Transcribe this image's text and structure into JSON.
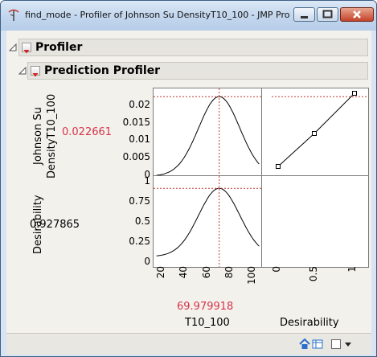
{
  "window": {
    "title": "find_mode - Profiler of Johnson Su DensityT10_100 - JMP Pro"
  },
  "outline": {
    "profiler_label": "Profiler",
    "prediction_profiler_label": "Prediction Profiler"
  },
  "profiler": {
    "response_label_line1": "Johnson Su",
    "response_label_line2": "DensityT10_100",
    "response_value": "0.022661",
    "desirability_label": "Desirability",
    "desirability_value": "0.927865",
    "factor_value": "69.979918",
    "factor_label": "T10_100",
    "desirability_axis_label": "Desirability",
    "y1_ticks": [
      "0.02",
      "0.015",
      "0.01",
      "0.005",
      "0"
    ],
    "y2_ticks": [
      "1",
      "0.75",
      "0.5",
      "0.25",
      "0"
    ],
    "x_ticks": [
      "20",
      "40",
      "60",
      "80",
      "100"
    ],
    "xd_ticks": [
      "0",
      "0.5",
      "1"
    ]
  },
  "colors": {
    "response_value": "#d6334a",
    "factor_value": "#d6334a",
    "crosshair": "#c0392b",
    "curve": "#000000"
  },
  "statusbar": {
    "icons": [
      "home-icon",
      "table-icon",
      "checkbox-icon",
      "dropdown-arrow-icon"
    ]
  }
}
